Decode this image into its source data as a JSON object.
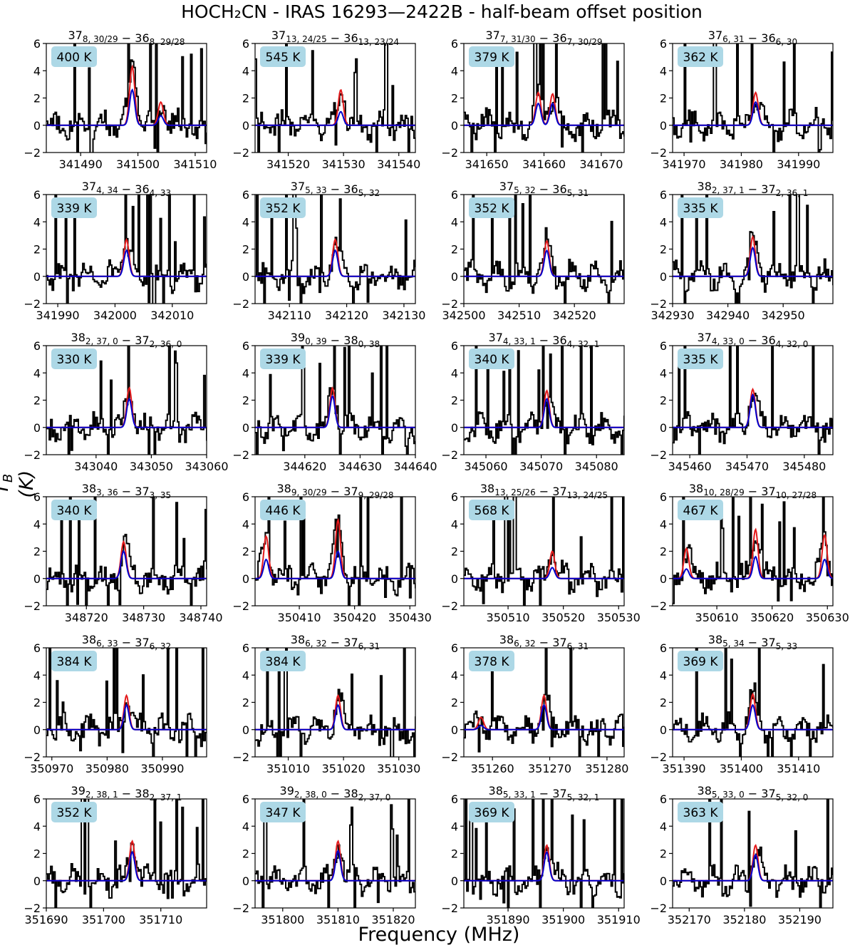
{
  "figure": {
    "title": "HOCH₂CN - IRAS 16293—2422B - half-beam offset position",
    "xlabel": "Frequency (MHz)",
    "ylabel": "T_B (K)"
  },
  "colors": {
    "observed": "#000000",
    "model_red": "#e41a1c",
    "model_blue": "#0000cc",
    "label_box": "#add8e6",
    "baseline": "#e41a1c"
  },
  "chart_data": [
    {
      "type": "line",
      "title": "37_{8, 30/29} − 36_{8, 29/28}",
      "temperature_label": "400 K",
      "xlim": [
        341484,
        341512
      ],
      "ylim": [
        -2,
        6
      ],
      "xticks": [
        341490,
        341500,
        341510
      ],
      "yticks": [
        -2,
        0,
        2,
        4,
        6
      ],
      "peaks_red": [
        [
          341499,
          4.3
        ],
        [
          341504,
          1.7
        ]
      ],
      "peaks_blue": [
        [
          341499,
          2.6
        ],
        [
          341504,
          0.7
        ]
      ],
      "series": [
        {
          "name": "",
          "values_note": ""
        }
      ]
    },
    {
      "type": "line",
      "title": "37_{13, 24/25} − 36_{13, 23/24}",
      "temperature_label": "545 K",
      "xlim": [
        341514,
        341543
      ],
      "ylim": [
        -2,
        6
      ],
      "xticks": [
        341520,
        341530,
        341540
      ],
      "yticks": [
        -2,
        0,
        2,
        4,
        6
      ],
      "peaks_red": [
        [
          341529.5,
          2.6
        ]
      ],
      "peaks_blue": [
        [
          341529.5,
          1.0
        ]
      ]
    },
    {
      "type": "line",
      "title": "37_{7, 31/30} − 36_{7, 30/29}",
      "temperature_label": "379 K",
      "xlim": [
        341646,
        341674
      ],
      "ylim": [
        -2,
        6
      ],
      "xticks": [
        341650,
        341660,
        341670
      ],
      "yticks": [
        -2,
        0,
        2,
        4,
        6
      ],
      "peaks_red": [
        [
          341659,
          2.4
        ],
        [
          341661.5,
          2.3
        ]
      ],
      "peaks_blue": [
        [
          341659,
          1.6
        ],
        [
          341661.5,
          1.6
        ]
      ]
    },
    {
      "type": "line",
      "title": "37_{6, 31} − 36_{6, 30}",
      "temperature_label": "362 K",
      "xlim": [
        341968,
        341996
      ],
      "ylim": [
        -2,
        6
      ],
      "xticks": [
        341970,
        341980,
        341990
      ],
      "yticks": [
        -2,
        0,
        2,
        4,
        6
      ],
      "peaks_red": [
        [
          341982.5,
          2.4
        ]
      ],
      "peaks_blue": [
        [
          341982.5,
          1.7
        ]
      ]
    },
    {
      "type": "line",
      "title": "37_{4, 34} − 36_{4, 33}",
      "temperature_label": "339 K",
      "xlim": [
        341988,
        342016
      ],
      "ylim": [
        -2,
        6
      ],
      "xticks": [
        341990,
        342000,
        342010
      ],
      "yticks": [
        -2,
        0,
        2,
        4,
        6
      ],
      "peaks_red": [
        [
          342002,
          2.7
        ]
      ],
      "peaks_blue": [
        [
          342002,
          1.9
        ]
      ]
    },
    {
      "type": "line",
      "title": "37_{5, 33} − 36_{5, 32}",
      "temperature_label": "352 K",
      "xlim": [
        342104,
        342132
      ],
      "ylim": [
        -2,
        6
      ],
      "xticks": [
        342110,
        342120,
        342130
      ],
      "yticks": [
        -2,
        0,
        2,
        4,
        6
      ],
      "peaks_red": [
        [
          342118,
          2.7
        ]
      ],
      "peaks_blue": [
        [
          342118,
          1.9
        ]
      ]
    },
    {
      "type": "line",
      "title": "37_{5, 32} − 36_{5, 31}",
      "temperature_label": "352 K",
      "xlim": [
        342500,
        342529
      ],
      "ylim": [
        -2,
        6
      ],
      "xticks": [
        342500,
        342510,
        342520
      ],
      "yticks": [
        -2,
        0,
        2,
        4,
        6
      ],
      "peaks_red": [
        [
          342515,
          2.6
        ]
      ],
      "peaks_blue": [
        [
          342515,
          1.9
        ]
      ]
    },
    {
      "type": "line",
      "title": "38_{2, 37, 1} − 37_{2, 36, 1}",
      "temperature_label": "335 K",
      "xlim": [
        342930,
        342959
      ],
      "ylim": [
        -2,
        6
      ],
      "xticks": [
        342930,
        342940,
        342950
      ],
      "yticks": [
        -2,
        0,
        2,
        4,
        6
      ],
      "peaks_red": [
        [
          342944.5,
          2.9
        ]
      ],
      "peaks_blue": [
        [
          342944.5,
          2.1
        ]
      ]
    },
    {
      "type": "line",
      "title": "38_{2, 37, 0} − 37_{2, 36, 0}",
      "temperature_label": "330 K",
      "xlim": [
        343031,
        343060
      ],
      "ylim": [
        -2,
        6
      ],
      "xticks": [
        343040,
        343050,
        343060
      ],
      "yticks": [
        -2,
        0,
        2,
        4,
        6
      ],
      "peaks_red": [
        [
          343046,
          2.9
        ]
      ],
      "peaks_blue": [
        [
          343046,
          2.1
        ]
      ]
    },
    {
      "type": "line",
      "title": "39_{0, 39} − 38_{0, 38}",
      "temperature_label": "339 K",
      "xlim": [
        344611,
        344640
      ],
      "ylim": [
        -2,
        6
      ],
      "xticks": [
        344620,
        344630,
        344640
      ],
      "yticks": [
        -2,
        0,
        2,
        4,
        6
      ],
      "peaks_red": [
        [
          344625,
          2.9
        ]
      ],
      "peaks_blue": [
        [
          344625,
          2.3
        ]
      ]
    },
    {
      "type": "line",
      "title": "37_{4, 33, 1} − 36_{4, 32, 1}",
      "temperature_label": "340 K",
      "xlim": [
        345056,
        345085
      ],
      "ylim": [
        -2,
        6
      ],
      "xticks": [
        345060,
        345070,
        345080
      ],
      "yticks": [
        -2,
        0,
        2,
        4,
        6
      ],
      "peaks_red": [
        [
          345071,
          2.7
        ]
      ],
      "peaks_blue": [
        [
          345071,
          2.1
        ]
      ]
    },
    {
      "type": "line",
      "title": "37_{4, 33, 0} − 36_{4, 32, 0}",
      "temperature_label": "335 K",
      "xlim": [
        345457,
        345485
      ],
      "ylim": [
        -2,
        6
      ],
      "xticks": [
        345460,
        345470,
        345480
      ],
      "yticks": [
        -2,
        0,
        2,
        4,
        6
      ],
      "peaks_red": [
        [
          345471,
          2.8
        ]
      ],
      "peaks_blue": [
        [
          345471,
          2.4
        ]
      ]
    },
    {
      "type": "line",
      "title": "38_{3, 36} − 37_{3, 35}",
      "temperature_label": "340 K",
      "xlim": [
        348713,
        348741
      ],
      "ylim": [
        -2,
        6
      ],
      "xticks": [
        348720,
        348730,
        348740
      ],
      "yticks": [
        -2,
        0,
        2,
        4,
        6
      ],
      "peaks_red": [
        [
          348726.5,
          2.7
        ]
      ],
      "peaks_blue": [
        [
          348726.5,
          2.0
        ]
      ]
    },
    {
      "type": "line",
      "title": "38_{9, 30/29} − 37_{9, 29/28}",
      "temperature_label": "446 K",
      "xlim": [
        350402,
        350431
      ],
      "ylim": [
        -2,
        6
      ],
      "xticks": [
        350410,
        350420,
        350430
      ],
      "yticks": [
        -2,
        0,
        2,
        4,
        6
      ],
      "peaks_red": [
        [
          350404,
          3.1
        ],
        [
          350417,
          4.3
        ]
      ],
      "peaks_blue": [
        [
          350404,
          1.4
        ],
        [
          350417,
          2.0
        ]
      ]
    },
    {
      "type": "line",
      "title": "38_{13, 25/26} − 37_{13, 24/25}",
      "temperature_label": "568 K",
      "xlim": [
        350502,
        350531
      ],
      "ylim": [
        -2,
        6
      ],
      "xticks": [
        350510,
        350520,
        350530
      ],
      "yticks": [
        -2,
        0,
        2,
        4,
        6
      ],
      "peaks_red": [
        [
          350518,
          2.0
        ]
      ],
      "peaks_blue": [
        [
          350518,
          0.8
        ]
      ]
    },
    {
      "type": "line",
      "title": "38_{10, 28/29} − 37_{10, 27/28}",
      "temperature_label": "467 K",
      "xlim": [
        350602,
        350631
      ],
      "ylim": [
        -2,
        6
      ],
      "xticks": [
        350610,
        350620,
        350630
      ],
      "yticks": [
        -2,
        0,
        2,
        4,
        6
      ],
      "peaks_red": [
        [
          350604.5,
          2.2
        ],
        [
          350617,
          3.6
        ],
        [
          350629.5,
          3.2
        ]
      ],
      "peaks_blue": [
        [
          350604.5,
          0.7
        ],
        [
          350617,
          1.6
        ],
        [
          350629.5,
          1.4
        ]
      ]
    },
    {
      "type": "line",
      "title": "38_{6, 33} − 37_{6, 32}",
      "temperature_label": "384 K",
      "xlim": [
        350969,
        350998
      ],
      "ylim": [
        -2,
        6
      ],
      "xticks": [
        350970,
        350980,
        350990
      ],
      "yticks": [
        -2,
        0,
        2,
        4,
        6
      ],
      "peaks_red": [
        [
          350983.5,
          2.5
        ]
      ],
      "peaks_blue": [
        [
          350983.5,
          1.8
        ]
      ]
    },
    {
      "type": "line",
      "title": "38_{6, 32} − 37_{6, 31}",
      "temperature_label": "384 K",
      "xlim": [
        351004,
        351033
      ],
      "ylim": [
        -2,
        6
      ],
      "xticks": [
        351010,
        351020,
        351030
      ],
      "yticks": [
        -2,
        0,
        2,
        4,
        6
      ],
      "peaks_red": [
        [
          351019,
          2.5
        ]
      ],
      "peaks_blue": [
        [
          351019,
          1.8
        ]
      ]
    },
    {
      "type": "line",
      "title": "38_{6, 32} − 37_{6, 31}",
      "temperature_label": "378 K",
      "xlim": [
        351255,
        351283
      ],
      "ylim": [
        -2,
        6
      ],
      "xticks": [
        351260,
        351270,
        351280
      ],
      "yticks": [
        -2,
        0,
        2,
        4,
        6
      ],
      "peaks_red": [
        [
          351258,
          0.9
        ],
        [
          351269,
          2.5
        ]
      ],
      "peaks_blue": [
        [
          351258,
          0.3
        ],
        [
          351269,
          1.8
        ]
      ]
    },
    {
      "type": "line",
      "title": "38_{5, 34} − 37_{5, 33}",
      "temperature_label": "369 K",
      "xlim": [
        351388,
        351416
      ],
      "ylim": [
        -2,
        6
      ],
      "xticks": [
        351390,
        351400,
        351410
      ],
      "yticks": [
        -2,
        0,
        2,
        4,
        6
      ],
      "peaks_red": [
        [
          351402,
          2.6
        ]
      ],
      "peaks_blue": [
        [
          351402,
          1.8
        ]
      ]
    },
    {
      "type": "line",
      "title": "39_{2, 38, 1} − 38_{2, 37, 1}",
      "temperature_label": "352 K",
      "xlim": [
        351690,
        351718
      ],
      "ylim": [
        -2,
        6
      ],
      "xticks": [
        351690,
        351700,
        351710
      ],
      "yticks": [
        -2,
        0,
        2,
        4,
        6
      ],
      "peaks_red": [
        [
          351705,
          2.9
        ]
      ],
      "peaks_blue": [
        [
          351705,
          2.1
        ]
      ]
    },
    {
      "type": "line",
      "title": "39_{2, 38, 0} − 38_{2, 37, 0}",
      "temperature_label": "347 K",
      "xlim": [
        351795,
        351824
      ],
      "ylim": [
        -2,
        6
      ],
      "xticks": [
        351800,
        351810,
        351820
      ],
      "yticks": [
        -2,
        0,
        2,
        4,
        6
      ],
      "peaks_red": [
        [
          351810,
          2.9
        ]
      ],
      "peaks_blue": [
        [
          351810,
          2.2
        ]
      ]
    },
    {
      "type": "line",
      "title": "38_{5, 33, 1} − 37_{5, 32, 1}",
      "temperature_label": "369 K",
      "xlim": [
        351882,
        351911
      ],
      "ylim": [
        -2,
        6
      ],
      "xticks": [
        351890,
        351900,
        351910
      ],
      "yticks": [
        -2,
        0,
        2,
        4,
        6
      ],
      "peaks_red": [
        [
          351897,
          2.6
        ]
      ],
      "peaks_blue": [
        [
          351897,
          2.1
        ]
      ]
    },
    {
      "type": "line",
      "title": "38_{5, 33, 0} − 37_{5, 32, 0}",
      "temperature_label": "363 K",
      "xlim": [
        352167,
        352196
      ],
      "ylim": [
        -2,
        6
      ],
      "xticks": [
        352170,
        352180,
        352190
      ],
      "yticks": [
        -2,
        0,
        2,
        4,
        6
      ],
      "peaks_red": [
        [
          352182,
          2.6
        ]
      ],
      "peaks_blue": [
        [
          352182,
          1.9
        ]
      ]
    }
  ]
}
